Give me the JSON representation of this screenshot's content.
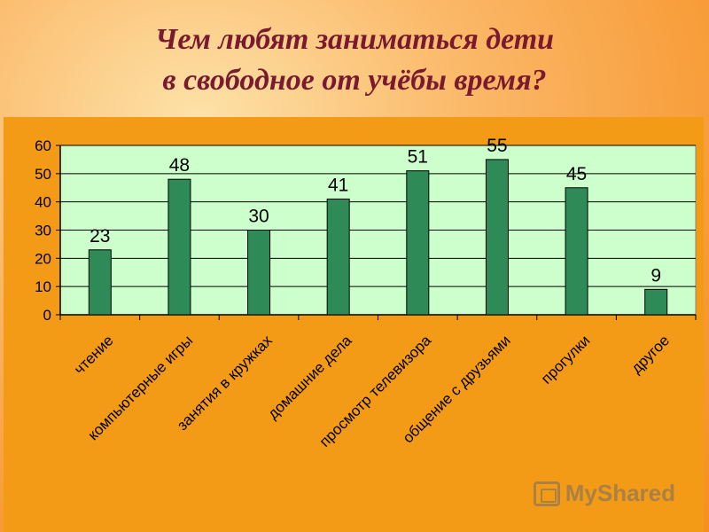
{
  "slide": {
    "title_line1": "Чем любят заниматься дети",
    "title_line2": "в свободное от учёбы время?"
  },
  "watermark": {
    "text": "MyShared",
    "icon": "myshared-logo-icon"
  },
  "chart_data": {
    "type": "bar",
    "categories": [
      "чтение",
      "компьютерные игры",
      "занятия в кружках",
      "домашние дела",
      "просмотр телевизора",
      "общение с друзьями",
      "прогулки",
      "другое"
    ],
    "values": [
      23,
      48,
      30,
      41,
      51,
      55,
      45,
      9
    ],
    "ylim": [
      0,
      60
    ],
    "yticks": [
      0,
      10,
      20,
      30,
      40,
      50,
      60
    ],
    "grid": true,
    "legend": "none",
    "colors": {
      "bar": "#2e8b57",
      "bar_stroke": "#000000",
      "plot_bg": "#ccffcc",
      "panel_bg": "#f39a16"
    }
  }
}
